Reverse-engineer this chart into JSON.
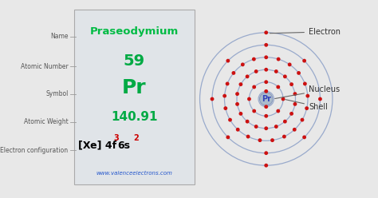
{
  "bg_color": "#e8e8e8",
  "element_name": "Praseodymium",
  "atomic_number": "59",
  "symbol": "Pr",
  "atomic_weight": "140.91",
  "website": "www.valenceelectrons.com",
  "labels_left": [
    "Name",
    "Atomic Number",
    "Symbol",
    "Atomic Weight",
    "Electron configuration"
  ],
  "name_color": "#00bb44",
  "number_color": "#00aa44",
  "symbol_color": "#00aa44",
  "weight_color": "#00aa44",
  "config_color_black": "#000000",
  "config_color_red": "#cc0000",
  "nucleus_face_color": "#aabbcc",
  "nucleus_text_color": "#3344bb",
  "electron_color": "#cc1111",
  "shell_color": "#99aacc",
  "electrons_per_shell": [
    2,
    8,
    18,
    21,
    8,
    2
  ],
  "box_facecolor": "#e0e4e8",
  "box_edgecolor": "#aaaaaa",
  "label_color": "#555555",
  "annotation_color": "#333333",
  "website_color": "#2255cc",
  "figw": 4.74,
  "figh": 2.48,
  "dpi": 100
}
